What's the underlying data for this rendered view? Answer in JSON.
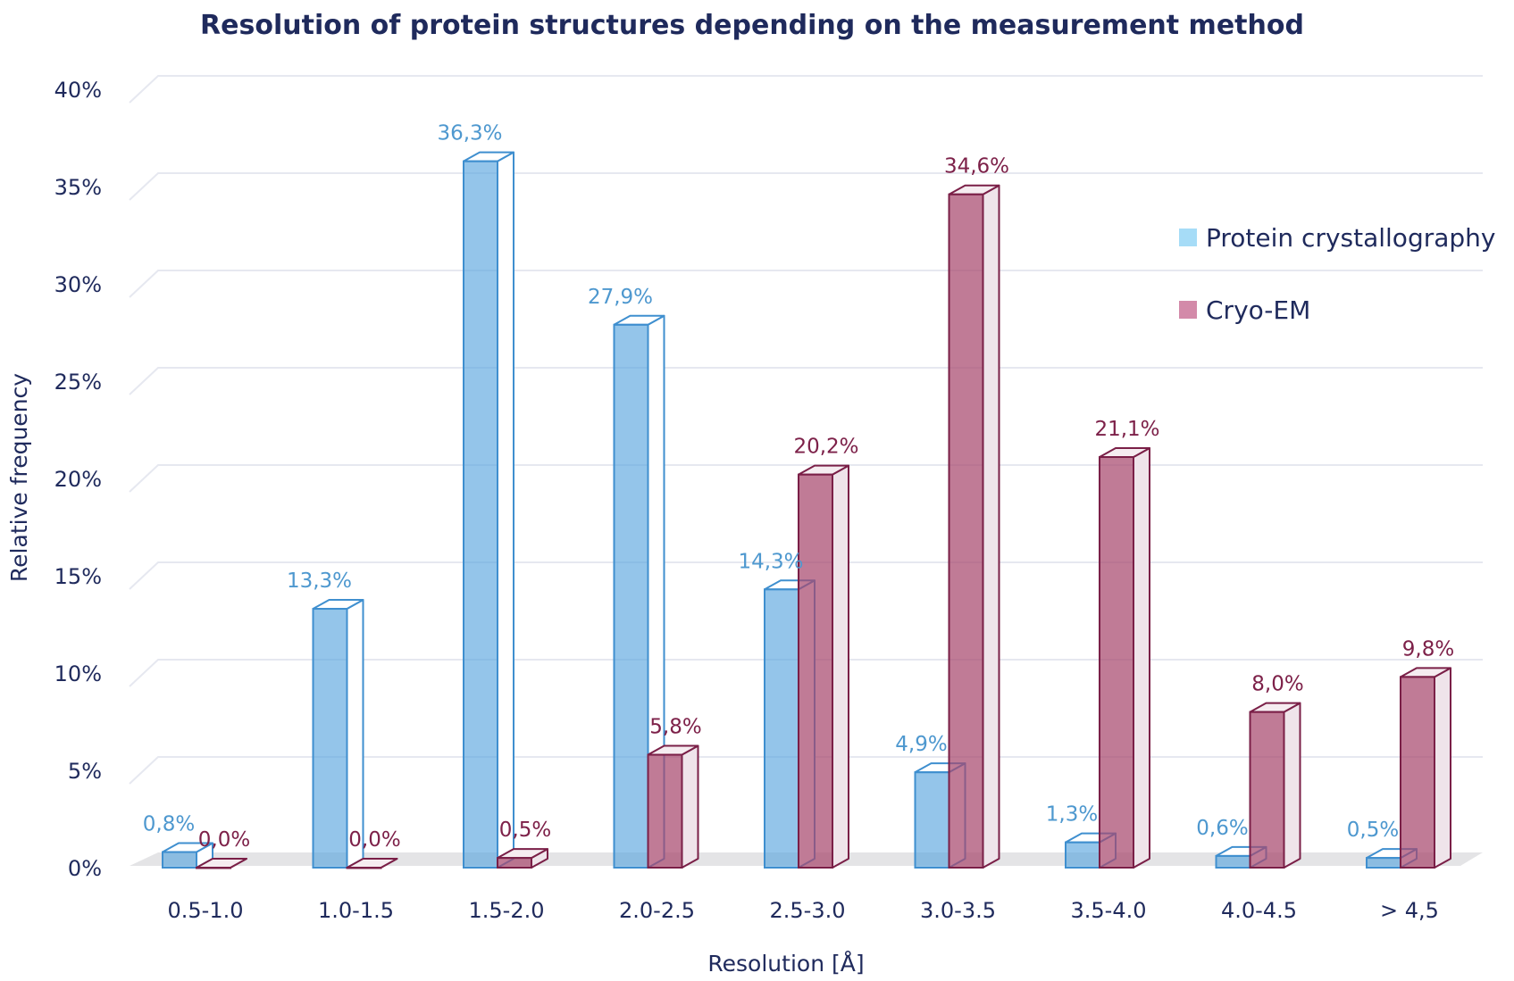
{
  "chart_data": {
    "type": "bar",
    "title": "Resolution of protein structures depending on the measurement method",
    "xlabel": "Resolution [Å]",
    "ylabel": "Relative frequency",
    "ylim": [
      0,
      40
    ],
    "yticks": [
      "0%",
      "5%",
      "10%",
      "15%",
      "20%",
      "25%",
      "30%",
      "35%",
      "40%"
    ],
    "grid": true,
    "legend_position": "top-right",
    "categories": [
      "0.5-1.0",
      "1.0-1.5",
      "1.5-2.0",
      "2.0-2.5",
      "2.5-3.0",
      "3.0-3.5",
      "3.5-4.0",
      "4.0-4.5",
      "> 4,5"
    ],
    "series": [
      {
        "name": "Protein crystallography",
        "color": "#5aa6de",
        "stroke": "#3f8fcf",
        "legend_color": "#a6dcf7",
        "label_color": "#4e98cf",
        "values": [
          0.8,
          13.3,
          36.3,
          27.9,
          14.3,
          4.9,
          1.3,
          0.6,
          0.5
        ],
        "labels": [
          "0,8%",
          "13,3%",
          "36,3%",
          "27,9%",
          "14,3%",
          "4,9%",
          "1,3%",
          "0,6%",
          "0,5%"
        ]
      },
      {
        "name": "Cryo-EM",
        "color": "#a8486e",
        "stroke": "#7a1f47",
        "legend_color": "#d38aa9",
        "label_color": "#7d2149",
        "values": [
          0.0,
          0.0,
          0.5,
          5.8,
          20.2,
          34.6,
          21.1,
          8.0,
          9.8
        ],
        "labels": [
          "0,0%",
          "0,0%",
          "0,5%",
          "5,8%",
          "20,2%",
          "34,6%",
          "21,1%",
          "8,0%",
          "9,8%"
        ]
      }
    ]
  }
}
